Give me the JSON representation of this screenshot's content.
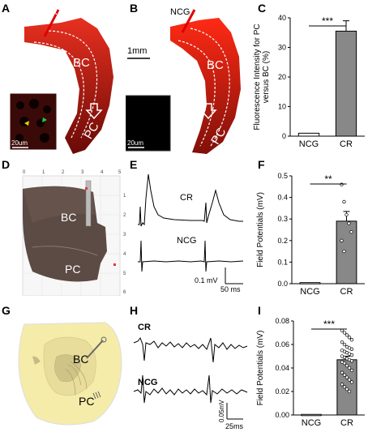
{
  "panels": {
    "A": {
      "letter": "A",
      "probe": "CR",
      "region_top": "BC",
      "region_bottom": "PC",
      "scale_inset": "20um"
    },
    "B": {
      "letter": "B",
      "probe": "NCG",
      "region_top": "BC",
      "region_bottom": "PC",
      "scale_bar": "1mm",
      "scale_inset": "20um"
    },
    "C": {
      "letter": "C"
    },
    "D": {
      "letter": "D",
      "region_top": "BC",
      "region_bottom": "PC",
      "ruler_x": [
        "0",
        "1",
        "2",
        "3",
        "4",
        "5"
      ],
      "ruler_y": [
        "1",
        "2",
        "3",
        "4",
        "5",
        "6"
      ]
    },
    "E": {
      "letter": "E",
      "trace1": "CR",
      "trace2": "NCG",
      "scale_v": "0.1 mV",
      "scale_t": "50 ms"
    },
    "F": {
      "letter": "F"
    },
    "G": {
      "letter": "G",
      "region_top": "BC",
      "region_bottom": "PC"
    },
    "H": {
      "letter": "H",
      "trace1": "CR",
      "trace2": "NCG",
      "scale_v": "0.05mV",
      "scale_t": "25ms"
    },
    "I": {
      "letter": "I"
    }
  },
  "chart_data": [
    {
      "type": "bar",
      "panel": "C",
      "categories": [
        "NCG",
        "CR"
      ],
      "values": [
        1,
        35.5
      ],
      "errors": [
        0.3,
        3.5
      ],
      "ylabel": "Fluorescence Intensity for PC versus BC (%)",
      "ylim": [
        0,
        40
      ],
      "yticks": [
        "0",
        "10",
        "20",
        "30",
        "40"
      ],
      "significance": "***",
      "colors": [
        "#ffffff",
        "#888888"
      ]
    },
    {
      "type": "bar",
      "panel": "F",
      "categories": [
        "NCG",
        "CR"
      ],
      "values": [
        0.005,
        0.29
      ],
      "errors": [
        0.003,
        0.045
      ],
      "points": [
        0.46,
        0.38,
        0.32,
        0.28,
        0.24,
        0.2,
        0.15
      ],
      "ylabel": "Field Potentials (mV)",
      "ylim": [
        0,
        0.5
      ],
      "yticks": [
        "0.0",
        "0.1",
        "0.2",
        "0.3",
        "0.4",
        "0.5"
      ],
      "significance": "**",
      "colors": [
        "#ffffff",
        "#888888"
      ]
    },
    {
      "type": "bar",
      "panel": "I",
      "categories": [
        "NCG",
        "CR"
      ],
      "values": [
        0.0005,
        0.047
      ],
      "errors": [
        0.0002,
        0.003
      ],
      "points": [
        0.072,
        0.07,
        0.068,
        0.066,
        0.064,
        0.062,
        0.06,
        0.058,
        0.057,
        0.056,
        0.055,
        0.054,
        0.053,
        0.052,
        0.051,
        0.05,
        0.049,
        0.048,
        0.047,
        0.046,
        0.045,
        0.044,
        0.042,
        0.04,
        0.038,
        0.036,
        0.034,
        0.032,
        0.03,
        0.028,
        0.026,
        0.024,
        0.022,
        0.02
      ],
      "ylabel": "Field Potentials (mV)",
      "ylim": [
        0,
        0.08
      ],
      "yticks": [
        "0.00",
        "0.02",
        "0.04",
        "0.06",
        "0.08"
      ],
      "significance": "***",
      "colors": [
        "#ffffff",
        "#888888"
      ]
    }
  ]
}
